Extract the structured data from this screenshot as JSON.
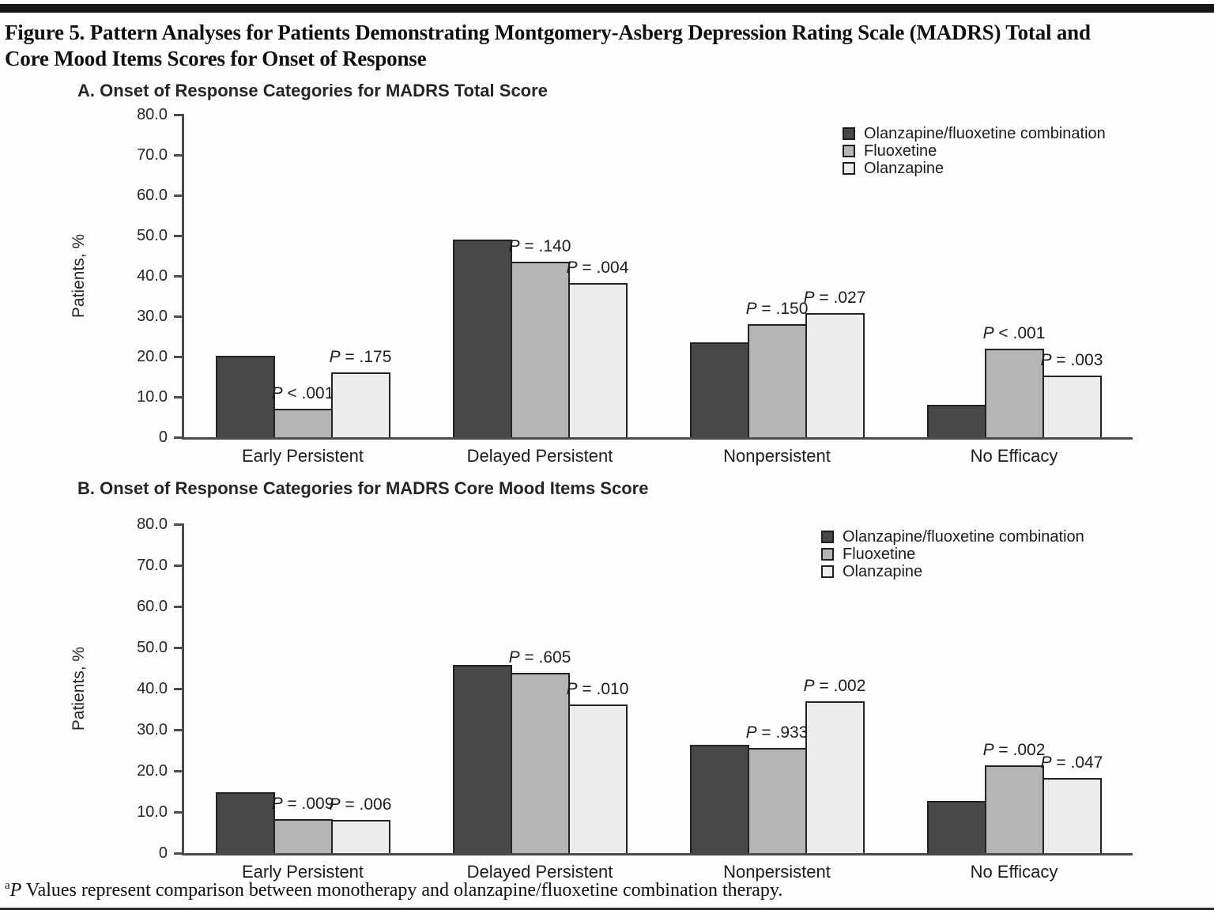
{
  "figure": {
    "title_lines": [
      "Figure 5. Pattern Analyses for Patients Demonstrating Montgomery-Asberg Depression Rating Scale (MADRS) Total and",
      "Core Mood Items Scores for Onset of Response"
    ],
    "footnote_marker": "a",
    "footnote_p": "P",
    "footnote_rest": " Values represent comparison between monotherapy and olanzapine/fluoxetine combination therapy."
  },
  "colors": {
    "bar_dark": "#484846",
    "bar_medium": "#b5b5b5",
    "bar_light": "#ececea",
    "bar_border": "#222220",
    "axis": "#4c4c4c"
  },
  "chart_data": [
    {
      "type": "bar",
      "panel_label": "A. Onset of Response Categories for MADRS Total Score",
      "ylabel": "Patients, %",
      "ylim": [
        0,
        80
      ],
      "grid": false,
      "legend_position": "top-right",
      "ytick_labels": [
        "80.0",
        "70.0",
        "60.0",
        "50.0",
        "40.0",
        "30.0",
        "20.0",
        "10.0",
        "0"
      ],
      "categories": [
        "Early Persistent",
        "Delayed Persistent",
        "Nonpersistent",
        "No Efficacy"
      ],
      "legend": [
        "Olanzapine/fluoxetine combination",
        "Fluoxetine",
        "Olanzapine"
      ],
      "series": [
        {
          "name": "Olanzapine/fluoxetine combination",
          "values": [
            20.2,
            49.0,
            23.5,
            8.0
          ]
        },
        {
          "name": "Fluoxetine",
          "values": [
            7.0,
            43.5,
            28.0,
            21.9
          ]
        },
        {
          "name": "Olanzapine",
          "values": [
            16.1,
            38.3,
            30.7,
            15.2
          ]
        }
      ],
      "p_labels": [
        [
          null,
          "P < .001",
          "P = .175"
        ],
        [
          null,
          "P = .140",
          "P = .004"
        ],
        [
          null,
          "P = .150",
          "P = .027"
        ],
        [
          null,
          "P < .001",
          "P = .003"
        ]
      ]
    },
    {
      "type": "bar",
      "panel_label": "B. Onset of Response Categories for MADRS Core Mood Items Score",
      "ylabel": "Patients, %",
      "ylim": [
        0,
        80
      ],
      "grid": false,
      "legend_position": "top-right",
      "ytick_labels": [
        "80.0",
        "70.0",
        "60.0",
        "50.0",
        "40.0",
        "30.0",
        "20.0",
        "10.0",
        "0"
      ],
      "categories": [
        "Early Persistent",
        "Delayed Persistent",
        "Nonpersistent",
        "No Efficacy"
      ],
      "legend": [
        "Olanzapine/fluoxetine combination",
        "Fluoxetine",
        "Olanzapine"
      ],
      "series": [
        {
          "name": "Olanzapine/fluoxetine combination",
          "values": [
            14.8,
            45.7,
            26.3,
            12.7
          ]
        },
        {
          "name": "Fluoxetine",
          "values": [
            8.3,
            43.8,
            25.5,
            21.3
          ]
        },
        {
          "name": "Olanzapine",
          "values": [
            8.0,
            36.1,
            37.0,
            18.2
          ]
        }
      ],
      "p_labels": [
        [
          null,
          "P = .009",
          "P = .006"
        ],
        [
          null,
          "P = .605",
          "P = .010"
        ],
        [
          null,
          "P = .933",
          "P = .002"
        ],
        [
          null,
          "P = .002",
          "P = .047"
        ]
      ]
    }
  ]
}
